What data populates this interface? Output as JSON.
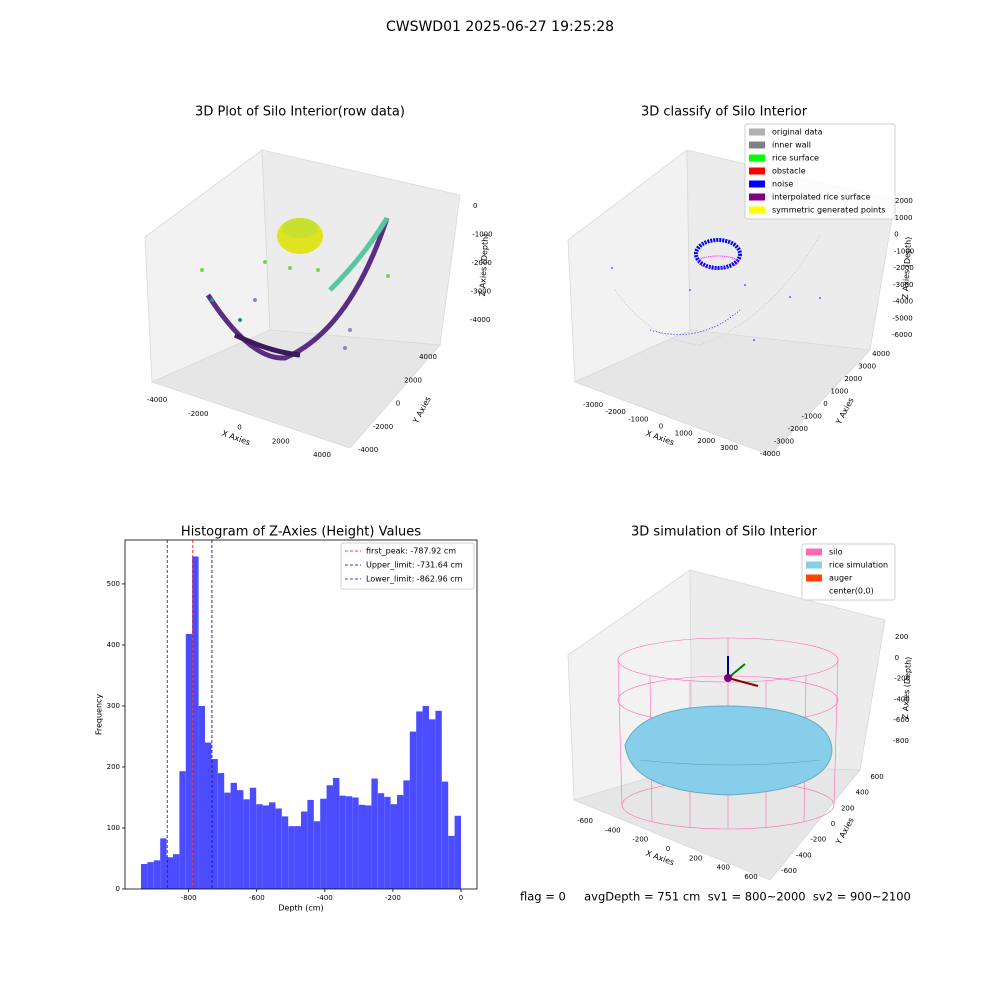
{
  "title": "CWSWD01 2025-06-27 19:25:28",
  "footer": "flag = 0     avgDepth = 751 cm  sv1 = 800~2000  sv2 = 900~2100",
  "chart_data": [
    {
      "type": "scatter3d",
      "title": "3D Plot of Silo Interior(row data)",
      "xlabel": "X Axies",
      "ylabel": "Y Axies",
      "zlabel": "Z Axies (Depth)",
      "xticks": [
        -4000,
        -2000,
        0,
        2000,
        4000
      ],
      "yticks": [
        -4000,
        -2000,
        0,
        2000,
        4000
      ],
      "zticks": [
        0,
        -1000,
        -2000,
        -3000,
        -4000
      ]
    },
    {
      "type": "scatter3d",
      "title": "3D classify of Silo Interior",
      "xlabel": "X Axies",
      "ylabel": "Y Axies",
      "zlabel": "Z Axies (Depth)",
      "xticks": [
        -3000,
        -2000,
        -1000,
        0,
        1000,
        2000,
        3000
      ],
      "yticks": [
        -4000,
        -3000,
        -2000,
        -1000,
        0,
        1000,
        2000,
        3000,
        4000
      ],
      "zticks": [
        2000,
        1000,
        0,
        -1000,
        -2000,
        -3000,
        -4000,
        -5000,
        -6000
      ],
      "legend": [
        {
          "name": "original data",
          "color": "#b0b0b0"
        },
        {
          "name": "inner wall",
          "color": "#808080"
        },
        {
          "name": "rice surface",
          "color": "#00ff00"
        },
        {
          "name": "obstacle",
          "color": "#ff0000"
        },
        {
          "name": "noise",
          "color": "#0000ff"
        },
        {
          "name": "interpolated rice surface",
          "color": "#800080"
        },
        {
          "name": "symmetric generated points",
          "color": "#ffff00"
        }
      ]
    },
    {
      "type": "histogram",
      "title": "Histogram of Z-Axies (Height) Values",
      "xlabel": "Depth (cm)",
      "ylabel": "Frequency",
      "color": "#4b4bff",
      "bins": [
        -940,
        -921.2,
        -902.4,
        -883.6,
        -864.8,
        -846,
        -827.2,
        -808.4,
        -789.6,
        -770.8,
        -752,
        -733.2,
        -714.4,
        -695.6,
        -676.8,
        -658,
        -639.2,
        -620.4,
        -601.6,
        -582.8,
        -564,
        -545.2,
        -526.4,
        -507.6,
        -488.8,
        -470,
        -451.2,
        -432.4,
        -413.6,
        -394.8,
        -376,
        -357.2,
        -338.4,
        -319.6,
        -300.8,
        -282,
        -263.2,
        -244.4,
        -225.6,
        -206.8,
        -188,
        -169.2,
        -150.4,
        -131.6,
        -112.8,
        -94,
        -75.2,
        -56.4,
        -37.6,
        -18.8,
        0
      ],
      "values": [
        41,
        44,
        47,
        83,
        52,
        57,
        193,
        418,
        545,
        300,
        240,
        213,
        190,
        158,
        174,
        162,
        147,
        166,
        139,
        137,
        142,
        132,
        119,
        103,
        103,
        127,
        146,
        111,
        148,
        170,
        182,
        153,
        152,
        150,
        138,
        137,
        181,
        157,
        151,
        139,
        154,
        178,
        258,
        291,
        300,
        278,
        292,
        176,
        87,
        120
      ],
      "lines": [
        {
          "name": "first_peak: -787.92 cm",
          "value": -787.92,
          "color": "#ff0000"
        },
        {
          "name": "Upper_limit: -731.64 cm",
          "value": -731.64,
          "color": "#00008b"
        },
        {
          "name": "Lower_limit: -862.96 cm",
          "value": -862.96,
          "color": "#0000ff"
        }
      ],
      "xlim": [
        -987,
        47
      ],
      "ylim": [
        0,
        572
      ],
      "xticks": [
        -800,
        -600,
        -400,
        -200,
        0
      ],
      "yticks": [
        0,
        100,
        200,
        300,
        400,
        500
      ]
    },
    {
      "type": "surface3d",
      "title": "3D simulation of Silo Interior",
      "xlabel": "X Axies",
      "ylabel": "Y Axies",
      "zlabel": "Z Axies (Depth)",
      "xticks": [
        -600,
        -400,
        -200,
        0,
        200,
        400,
        600
      ],
      "yticks": [
        -600,
        -400,
        -200,
        0,
        200,
        400,
        600
      ],
      "zticks": [
        200,
        0,
        -200,
        -400,
        -600,
        -800
      ],
      "legend": [
        {
          "name": "silo",
          "color": "#ff69b4"
        },
        {
          "name": "rice simulation",
          "color": "#87ceeb"
        },
        {
          "name": "auger",
          "color": "#ff4500"
        },
        {
          "name": "center(0,0)",
          "color": "#ffffff"
        }
      ]
    }
  ]
}
